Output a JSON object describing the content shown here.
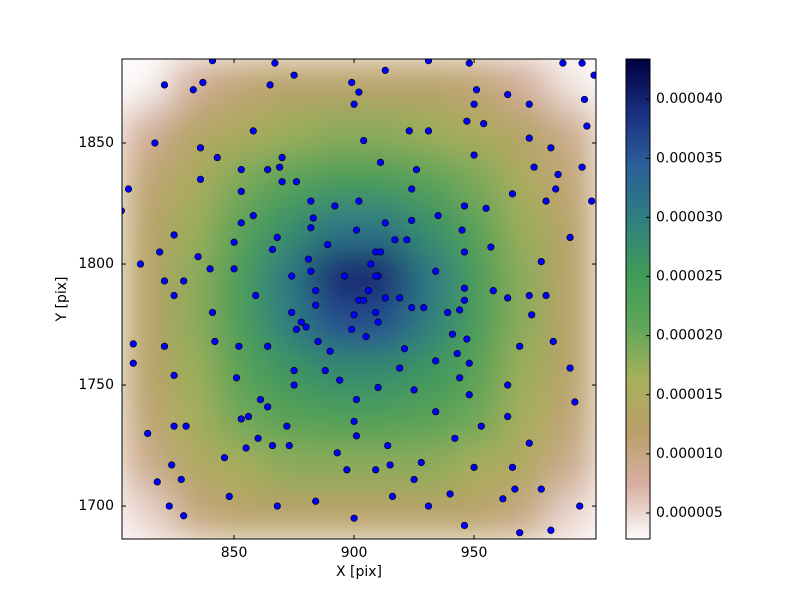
{
  "chart_data": {
    "type": "heatmap",
    "xlabel": "X [pix]",
    "ylabel": "Y [pix]",
    "xlim": [
      803.3,
      1000.8
    ],
    "ylim": [
      1686.4,
      1884.7
    ],
    "xticks": [
      850,
      900,
      950
    ],
    "yticks": [
      1700,
      1750,
      1800,
      1850
    ],
    "z": [
      [
        3e-06,
        8e-06,
        1.1e-05,
        1.2e-05,
        1.2e-05,
        1.2e-05,
        1.2e-05,
        1.1e-05,
        8e-06,
        4e-06
      ],
      [
        8e-06,
        1.3e-05,
        1.5e-05,
        1.7e-05,
        1.8e-05,
        1.8e-05,
        1.7e-05,
        1.5e-05,
        1.3e-05,
        9e-06
      ],
      [
        1.1e-05,
        1.5e-05,
        1.9e-05,
        2.2e-05,
        2.4e-05,
        2.4e-05,
        2.2e-05,
        1.9e-05,
        1.5e-05,
        1.1e-05
      ],
      [
        1.2e-05,
        1.7e-05,
        2.2e-05,
        2.7e-05,
        3.1e-05,
        3.1e-05,
        2.7e-05,
        2.2e-05,
        1.7e-05,
        1.2e-05
      ],
      [
        1.2e-05,
        1.8e-05,
        2.4e-05,
        3.1e-05,
        4e-05,
        4e-05,
        3.1e-05,
        2.4e-05,
        1.8e-05,
        1.2e-05
      ],
      [
        1.2e-05,
        1.8e-05,
        2.4e-05,
        3e-05,
        3.6e-05,
        3.6e-05,
        3e-05,
        2.4e-05,
        1.8e-05,
        1.2e-05
      ],
      [
        1.2e-05,
        1.7e-05,
        2.2e-05,
        2.6e-05,
        2.8e-05,
        2.8e-05,
        2.6e-05,
        2.2e-05,
        1.7e-05,
        1.2e-05
      ],
      [
        1.1e-05,
        1.6e-05,
        2e-05,
        2.2e-05,
        2.3e-05,
        2.3e-05,
        2.2e-05,
        2e-05,
        1.6e-05,
        1.1e-05
      ],
      [
        9e-06,
        1.4e-05,
        1.6e-05,
        1.8e-05,
        1.8e-05,
        1.8e-05,
        1.8e-05,
        1.6e-05,
        1.4e-05,
        9e-06
      ],
      [
        5e-06,
        1e-05,
        1.2e-05,
        1.2e-05,
        1.2e-05,
        1.2e-05,
        1.2e-05,
        1.2e-05,
        1e-05,
        5e-06
      ]
    ],
    "colormap": [
      "#fdfbfb",
      "#d8b0a3",
      "#bb9f6a",
      "#a7b05a",
      "#5fa65a",
      "#3e9a57",
      "#2f7f7f",
      "#2b5f9a",
      "#1a2f80",
      "#000040"
    ],
    "clim": [
      2.8e-06,
      4.34e-05
    ],
    "cticks": [
      {
        "value": 5e-06,
        "label": "0.000005"
      },
      {
        "value": 1e-05,
        "label": "0.000010"
      },
      {
        "value": 1.5e-05,
        "label": "0.000015"
      },
      {
        "value": 2e-05,
        "label": "0.000020"
      },
      {
        "value": 2.5e-05,
        "label": "0.000025"
      },
      {
        "value": 3e-05,
        "label": "0.000030"
      },
      {
        "value": 3.5e-05,
        "label": "0.000035"
      },
      {
        "value": 4e-05,
        "label": "0.000040"
      }
    ],
    "scatter": {
      "color": "#0000ff",
      "x": [
        803,
        806,
        811,
        808,
        808,
        814,
        818,
        821,
        817,
        819,
        821,
        825,
        825,
        821,
        825,
        824,
        825,
        830,
        828,
        823,
        829,
        829,
        833,
        837,
        836,
        836,
        835,
        840,
        841,
        842,
        843,
        841,
        846,
        848,
        850,
        850,
        851,
        852,
        853,
        853,
        853,
        853,
        855,
        856,
        858,
        858,
        859,
        860,
        861,
        864,
        864,
        864,
        866,
        866,
        868,
        865,
        867,
        869,
        870,
        870,
        868,
        872,
        873,
        874,
        874,
        875,
        876,
        875,
        875,
        876,
        878,
        880,
        881,
        882,
        882,
        882,
        883,
        884,
        884,
        885,
        884,
        889,
        890,
        888,
        892,
        893,
        894,
        896,
        897,
        899,
        900,
        900,
        901,
        902,
        902,
        900,
        901,
        900,
        899,
        902,
        904,
        904,
        901,
        905,
        907,
        909,
        906,
        910,
        910,
        909,
        911,
        909,
        910,
        909,
        911,
        913,
        913,
        913,
        914,
        915,
        916,
        917,
        919,
        919,
        921,
        922,
        923,
        924,
        924,
        924,
        926,
        925,
        925,
        928,
        929,
        931,
        931,
        931,
        934,
        934,
        934,
        935,
        939,
        940,
        941,
        942,
        943,
        944,
        944,
        945,
        946,
        946,
        946,
        946,
        947,
        947,
        948,
        948,
        946,
        948,
        950,
        950,
        950,
        951,
        954,
        953,
        955,
        957,
        958,
        962,
        964,
        964,
        964,
        964,
        966,
        966,
        967,
        969,
        969,
        973,
        973,
        973,
        973,
        974,
        975,
        978,
        978,
        980,
        980,
        982,
        982,
        983,
        984,
        985,
        987,
        990,
        990,
        992,
        994,
        995,
        997,
        996,
        999,
        1000,
        995
      ],
      "y": [
        1822,
        1831,
        1800,
        1767,
        1759,
        1730,
        1710,
        1874,
        1850,
        1805,
        1793,
        1812,
        1787,
        1766,
        1754,
        1717,
        1733,
        1733,
        1711,
        1700,
        1696,
        1793,
        1872,
        1875,
        1848,
        1835,
        1803,
        1798,
        1780,
        1768,
        1844,
        1884,
        1720,
        1704,
        1809,
        1798,
        1753,
        1766,
        1736,
        1839,
        1830,
        1817,
        1724,
        1737,
        1855,
        1820,
        1787,
        1728,
        1744,
        1741,
        1839,
        1766,
        1806,
        1725,
        1700,
        1874,
        1883,
        1840,
        1844,
        1834,
        1811,
        1733,
        1725,
        1795,
        1780,
        1878,
        1834,
        1750,
        1756,
        1773,
        1776,
        1774,
        1802,
        1815,
        1797,
        1826,
        1819,
        1789,
        1783,
        1768,
        1702,
        1808,
        1764,
        1756,
        1824,
        1722,
        1752,
        1795,
        1715,
        1875,
        1695,
        1866,
        1814,
        1826,
        1871,
        1735,
        1729,
        1779,
        1773,
        1785,
        1785,
        1851,
        1744,
        1770,
        1800,
        1805,
        1789,
        1795,
        1776,
        1780,
        1805,
        1795,
        1749,
        1715,
        1842,
        1880,
        1786,
        1817,
        1725,
        1717,
        1704,
        1810,
        1786,
        1757,
        1765,
        1810,
        1855,
        1818,
        1782,
        1831,
        1839,
        1748,
        1711,
        1718,
        1782,
        1855,
        1700,
        1884,
        1797,
        1739,
        1760,
        1820,
        1780,
        1705,
        1771,
        1728,
        1763,
        1753,
        1781,
        1814,
        1805,
        1790,
        1824,
        1785,
        1769,
        1859,
        1746,
        1883,
        1692,
        1759,
        1716,
        1845,
        1866,
        1872,
        1858,
        1733,
        1823,
        1807,
        1789,
        1703,
        1870,
        1786,
        1750,
        1737,
        1829,
        1716,
        1707,
        1766,
        1689,
        1726,
        1852,
        1866,
        1787,
        1779,
        1840,
        1801,
        1707,
        1826,
        1787,
        1690,
        1848,
        1768,
        1831,
        1837,
        1883,
        1811,
        1757,
        1743,
        1700,
        1840,
        1857,
        1868,
        1826,
        1878,
        1883
      ]
    }
  }
}
